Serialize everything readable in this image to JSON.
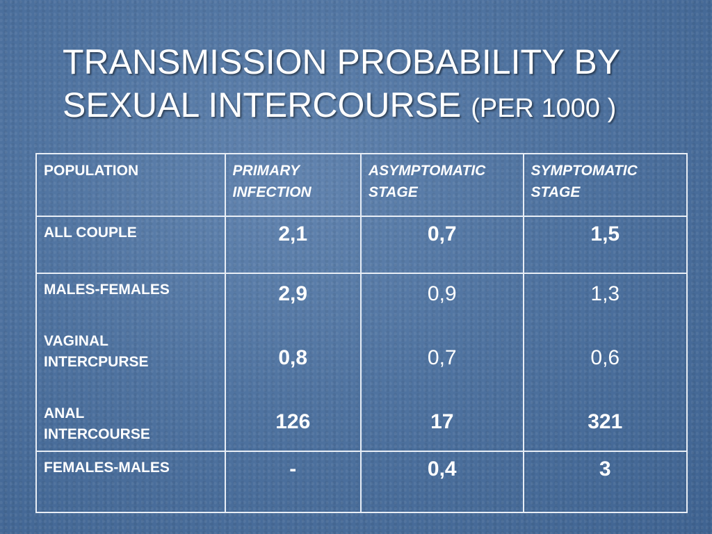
{
  "slide": {
    "title_line1": "TRANSMISSION PROBABILITY BY",
    "title_line2": "SEXUAL INTERCOURSE",
    "title_suffix": "(PER 1000 )"
  },
  "table": {
    "headers": [
      "POPULATION",
      "PRIMARY INFECTION",
      "ASYMPTOMATIC STAGE",
      "SYMPTOMATIC STAGE"
    ],
    "header_lines": [
      [
        "POPULATION"
      ],
      [
        "PRIMARY",
        "INFECTION"
      ],
      [
        "ASYMPTOMATIC",
        "STAGE"
      ],
      [
        "SYMPTOMATIC",
        "STAGE"
      ]
    ],
    "rows": [
      {
        "population": "ALL COUPLE",
        "primary": "2,1",
        "asymptomatic": "0,7",
        "symptomatic": "1,5"
      },
      {
        "populations": [
          "MALES-FEMALES",
          "VAGINAL INTERCPURSE",
          "ANAL INTERCOURSE"
        ],
        "primary": [
          "2,9",
          "0,8",
          "126"
        ],
        "asymptomatic": [
          "0,9",
          "0,7",
          "17"
        ],
        "symptomatic": [
          "1,3",
          "0,6",
          "321"
        ]
      },
      {
        "population": "FEMALES-MALES",
        "primary": "-",
        "asymptomatic": "0,4",
        "symptomatic": "3"
      }
    ]
  }
}
